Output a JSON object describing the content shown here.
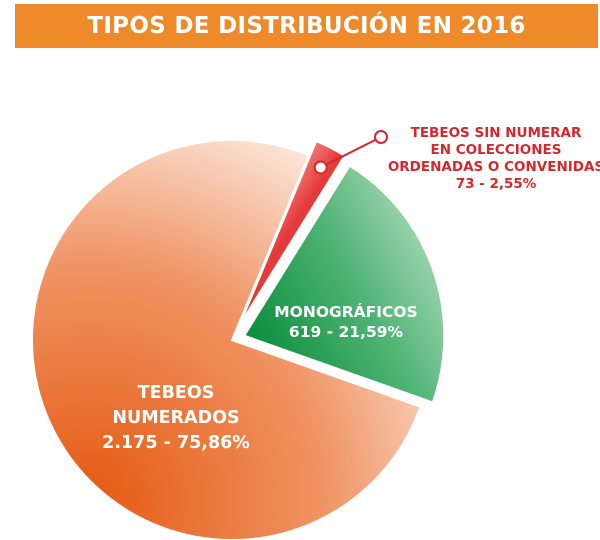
{
  "title": "TIPOS DE DISTRIBUCIÓN EN 2016",
  "colors": {
    "title_bg": "#ef8a2b",
    "numerados": "#e8621e",
    "monograficos": "#1a9a4a",
    "sin_numerar": "#e53a3a",
    "callout": "#d9262b"
  },
  "chart_data": {
    "type": "pie",
    "title": "TIPOS DE DISTRIBUCIÓN EN 2016",
    "slices": [
      {
        "key": "monograficos",
        "label_lines": [
          "MONOGRÁFICOS",
          "619 - 21,59%"
        ],
        "value": 619,
        "percent": 21.59,
        "exploded": true
      },
      {
        "key": "numerados",
        "label_lines": [
          "TEBEOS",
          "NUMERADOS",
          "2.175 - 75,86%"
        ],
        "value": 2175,
        "percent": 75.86,
        "exploded": false
      },
      {
        "key": "sin_numerar",
        "label_lines": [
          "TEBEOS SIN NUMERAR",
          "EN COLECCIONES",
          "ORDENADAS O CONVENIDAS",
          "73 - 2,55%"
        ],
        "value": 73,
        "percent": 2.55,
        "exploded": true
      }
    ],
    "legend": "none",
    "grid": false
  }
}
